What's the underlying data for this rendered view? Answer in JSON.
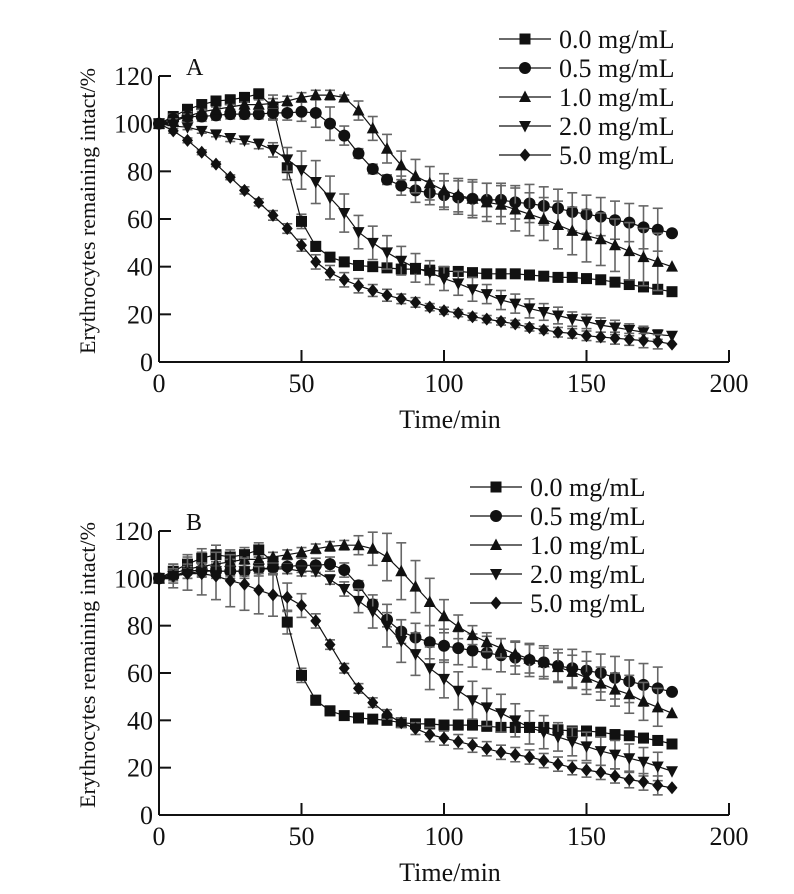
{
  "chart_data": [
    {
      "type": "line",
      "panel_label": "A",
      "title": "",
      "xlabel": "Time/min",
      "ylabel": "Erythrocytes remaining intact/%",
      "xlim": [
        0,
        200
      ],
      "ylim": [
        0,
        120
      ],
      "xticks": [
        0,
        50,
        100,
        150,
        200
      ],
      "yticks": [
        0,
        20,
        40,
        60,
        80,
        100,
        120
      ],
      "grid": false,
      "legend_position": "top-right",
      "x": [
        0,
        5,
        10,
        15,
        20,
        25,
        30,
        35,
        40,
        45,
        50,
        55,
        60,
        65,
        70,
        75,
        80,
        85,
        90,
        95,
        100,
        105,
        110,
        115,
        120,
        125,
        130,
        135,
        140,
        145,
        150,
        155,
        160,
        165,
        170,
        175,
        180
      ],
      "series": [
        {
          "name": "0.0 mg/mL",
          "marker": "square",
          "values": [
            100,
            103,
            106,
            108,
            109.5,
            110,
            111,
            112.5,
            107,
            81.5,
            59,
            48.5,
            44,
            42,
            40.5,
            40,
            39.5,
            39,
            39,
            38.5,
            38,
            38,
            37.5,
            37,
            37,
            37,
            36.5,
            36,
            35.5,
            35.5,
            35,
            34.5,
            33.5,
            32.5,
            31.5,
            30.5,
            29.5
          ],
          "errors": [
            0,
            2,
            2,
            2,
            2,
            2,
            2,
            2,
            5,
            5,
            3,
            2,
            1.5,
            1.5,
            1.5,
            1.5,
            1.5,
            1.5,
            2,
            2,
            2,
            1.5,
            1.5,
            1.5,
            1.5,
            1.5,
            1.5,
            1.5,
            1.5,
            1.5,
            1.5,
            1.5,
            1.5,
            1.5,
            1.5,
            1.5,
            1.5
          ]
        },
        {
          "name": "0.5 mg/mL",
          "marker": "circle",
          "values": [
            100,
            102,
            103,
            103,
            103.5,
            104,
            104,
            104,
            104.5,
            104.5,
            105,
            104.5,
            100,
            95,
            87.5,
            81,
            76.5,
            74,
            72,
            71,
            70,
            69,
            68.5,
            68,
            68,
            67,
            66.5,
            65.5,
            64.5,
            63,
            62,
            61,
            59.5,
            58.5,
            56.5,
            55.5,
            54
          ],
          "errors": [
            0,
            2,
            2,
            2,
            2,
            2,
            2,
            2,
            3,
            3,
            4,
            6,
            7,
            4,
            2,
            2,
            2,
            4,
            5,
            5,
            6,
            7,
            7,
            7,
            7,
            7,
            8,
            8,
            8,
            8,
            8,
            8,
            8,
            8,
            9,
            9,
            0
          ]
        },
        {
          "name": "1.0 mg/mL",
          "marker": "triangle-up",
          "values": [
            100,
            101,
            103,
            105,
            106,
            107,
            108,
            108,
            108.5,
            109.5,
            111,
            112,
            112,
            111,
            105.5,
            98,
            89.5,
            82.5,
            78,
            75,
            72,
            70,
            68.5,
            67,
            66,
            64,
            62,
            60,
            57.5,
            55,
            53,
            51.5,
            49,
            46.5,
            44,
            42,
            40
          ],
          "errors": [
            0,
            1,
            1,
            1,
            1,
            1,
            1,
            2,
            2,
            2,
            2,
            2,
            2,
            1,
            4,
            5,
            6,
            6,
            7,
            7,
            7,
            7,
            8,
            8,
            8,
            9,
            9,
            9,
            10,
            10,
            11,
            11,
            11,
            12,
            12,
            12,
            0
          ]
        },
        {
          "name": "2.0 mg/mL",
          "marker": "triangle-down",
          "values": [
            100,
            99,
            98.5,
            97,
            95.5,
            94,
            93,
            91.5,
            89,
            85,
            80.5,
            75.5,
            69,
            62.5,
            54.5,
            50,
            46,
            42.5,
            39.5,
            37.5,
            35,
            33,
            30.5,
            28.5,
            26,
            24.5,
            22.5,
            21,
            19.5,
            18,
            17,
            15.5,
            14.5,
            13.5,
            12.5,
            11.5,
            11
          ],
          "errors": [
            0,
            1,
            1,
            1,
            1,
            1.5,
            1.5,
            2,
            3,
            5,
            8,
            9,
            9,
            8,
            7,
            7,
            7,
            6,
            6,
            5,
            5,
            5,
            5,
            4,
            4,
            4,
            4,
            3.5,
            3.5,
            3,
            3,
            3,
            3,
            2.5,
            2.5,
            2,
            0
          ]
        },
        {
          "name": "5.0 mg/mL",
          "marker": "diamond",
          "values": [
            100,
            97,
            93,
            88,
            83,
            77.5,
            72,
            67,
            61.5,
            56,
            49,
            42,
            37.5,
            34.5,
            32,
            30,
            28,
            26.5,
            25,
            23,
            21.5,
            20.5,
            19,
            18,
            17,
            16,
            14.5,
            13.5,
            12.5,
            12,
            11,
            10.5,
            10,
            9.5,
            9,
            8.5,
            7.5
          ],
          "errors": [
            0,
            1,
            1,
            1,
            1,
            1,
            1.5,
            1.5,
            2,
            2,
            2.5,
            3,
            3,
            3,
            3,
            2.5,
            2.5,
            2,
            2,
            1.5,
            1.5,
            1.5,
            1.5,
            1.5,
            1.5,
            1.5,
            1.5,
            1.5,
            2,
            2,
            2,
            2,
            2.5,
            2.5,
            3,
            3,
            0
          ]
        }
      ]
    },
    {
      "type": "line",
      "panel_label": "B",
      "title": "",
      "xlabel": "Time/min",
      "ylabel": "Erythrocytes remaining intact/%",
      "xlim": [
        0,
        200
      ],
      "ylim": [
        0,
        120
      ],
      "xticks": [
        0,
        50,
        100,
        150,
        200
      ],
      "yticks": [
        0,
        20,
        40,
        60,
        80,
        100,
        120
      ],
      "grid": false,
      "legend_position": "top-right",
      "x": [
        0,
        5,
        10,
        15,
        20,
        25,
        30,
        35,
        40,
        45,
        50,
        55,
        60,
        65,
        70,
        75,
        80,
        85,
        90,
        95,
        100,
        105,
        110,
        115,
        120,
        125,
        130,
        135,
        140,
        145,
        150,
        155,
        160,
        165,
        170,
        175,
        180
      ],
      "series": [
        {
          "name": "0.0 mg/mL",
          "marker": "square",
          "values": [
            100,
            103,
            106,
            108.5,
            110,
            109,
            110,
            112,
            107,
            81.5,
            59,
            48.5,
            44,
            42,
            41,
            40.5,
            40,
            39,
            38.5,
            38.5,
            38,
            38,
            38,
            37.5,
            37,
            37,
            37,
            37,
            36,
            35.5,
            35.5,
            35,
            34,
            33.5,
            32.5,
            31.5,
            30
          ],
          "errors": [
            0,
            3,
            4,
            4,
            4,
            3,
            3,
            3,
            4,
            5,
            3,
            2,
            2,
            1.5,
            1.5,
            1.5,
            1.5,
            1.5,
            2,
            2,
            2,
            2,
            2,
            2,
            2,
            2,
            2,
            2,
            1.5,
            1.5,
            1.5,
            1.5,
            1.5,
            1.5,
            1.5,
            1.5,
            1.5
          ]
        },
        {
          "name": "0.5 mg/mL",
          "marker": "circle",
          "values": [
            100,
            101,
            103,
            103.5,
            103,
            103,
            103,
            104,
            104.5,
            105,
            105.5,
            105.5,
            106,
            103.5,
            97,
            89,
            82.5,
            77.5,
            75,
            73,
            71.5,
            70.5,
            69.5,
            68.5,
            67.5,
            66.5,
            65.5,
            64.5,
            63,
            62,
            61,
            60,
            58,
            56.5,
            55,
            53.5,
            52
          ],
          "errors": [
            0,
            3,
            3,
            3,
            3,
            3,
            3,
            3,
            3,
            3,
            3,
            3,
            3,
            3,
            2,
            2,
            3,
            5,
            6,
            7,
            7,
            7,
            7,
            7,
            7,
            7,
            7,
            7,
            7,
            8,
            8,
            8,
            9,
            9,
            9,
            9,
            0
          ]
        },
        {
          "name": "1.0 mg/mL",
          "marker": "triangle-up",
          "values": [
            100,
            102,
            104,
            105,
            106,
            107,
            108,
            108,
            109,
            110,
            111,
            112.5,
            113.5,
            114,
            114,
            112.5,
            109,
            103,
            96.5,
            90,
            84,
            79.5,
            76,
            73,
            70.5,
            68,
            66,
            64.5,
            62.5,
            60.5,
            58,
            55.5,
            53,
            51,
            48,
            45.5,
            43
          ],
          "errors": [
            0,
            1,
            1,
            1,
            1,
            1,
            1,
            1,
            2,
            2,
            2,
            2,
            2,
            2,
            4,
            7,
            10,
            12,
            11,
            10,
            7,
            5,
            4,
            4,
            4,
            5,
            6,
            6,
            6,
            7,
            7,
            7,
            7,
            8,
            8,
            8,
            0
          ]
        },
        {
          "name": "2.0 mg/mL",
          "marker": "triangle-down",
          "values": [
            100,
            101,
            102,
            103,
            103,
            103,
            103,
            104,
            104,
            104,
            103,
            103,
            99.5,
            95.5,
            90.5,
            86,
            80,
            73.5,
            68,
            62,
            57.5,
            52.5,
            48.5,
            45.5,
            43,
            40,
            37,
            35,
            33,
            31,
            29,
            27,
            25.5,
            24,
            22.5,
            20.5,
            18.5
          ],
          "errors": [
            0,
            2,
            2,
            2,
            2,
            2,
            2,
            2,
            2,
            2,
            2,
            2,
            2,
            3,
            5,
            7,
            9,
            9,
            9,
            9,
            8,
            8,
            8,
            8,
            8,
            7,
            7,
            7,
            6,
            6,
            6,
            6,
            6,
            6,
            6,
            6,
            0
          ]
        },
        {
          "name": "5.0 mg/mL",
          "marker": "diamond",
          "values": [
            100,
            101,
            102,
            102,
            101,
            99,
            97.5,
            95,
            93,
            92,
            88.5,
            82,
            72,
            62,
            53.5,
            47.5,
            42.5,
            39,
            36.5,
            34,
            32.5,
            31,
            29.5,
            28,
            26.5,
            25.5,
            24.5,
            23,
            21.5,
            20,
            19,
            18,
            16.5,
            15,
            14,
            12.5,
            11.5
          ],
          "errors": [
            0,
            5,
            7,
            9,
            10,
            11,
            11,
            10,
            9,
            6,
            5,
            3,
            2,
            2,
            2,
            2,
            2,
            2,
            2.5,
            3,
            3,
            3,
            3,
            3,
            3,
            3,
            3,
            3,
            3,
            3,
            3,
            3,
            3,
            3.5,
            3.5,
            4,
            0
          ]
        }
      ]
    }
  ]
}
